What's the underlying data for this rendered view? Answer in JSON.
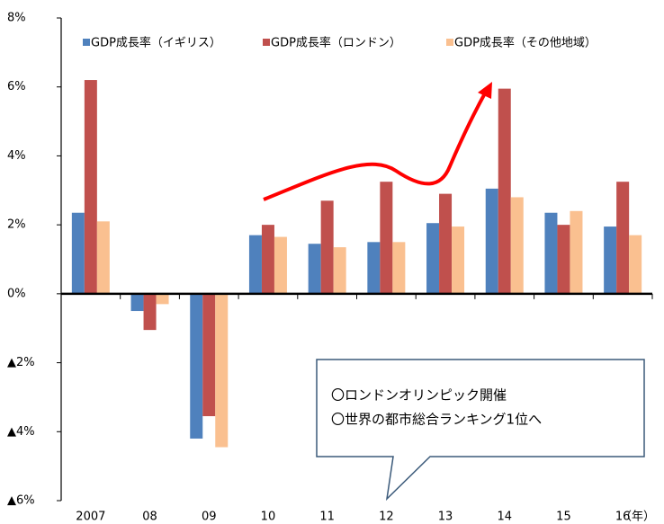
{
  "chart_data": {
    "type": "bar",
    "categories": [
      "2007",
      "08",
      "09",
      "10",
      "11",
      "12",
      "13",
      "14",
      "15",
      "16"
    ],
    "x_label": "（年）",
    "series": [
      {
        "name": "GDP成長率（イギリス）",
        "color": "#4f81bd",
        "values": [
          2.35,
          -0.5,
          -4.2,
          1.7,
          1.45,
          1.5,
          2.05,
          3.05,
          2.35,
          1.95
        ]
      },
      {
        "name": "GDP成長率（ロンドン）",
        "color": "#c0504d",
        "values": [
          6.2,
          -1.05,
          -3.55,
          2.0,
          2.7,
          3.25,
          2.9,
          5.95,
          2.0,
          3.25
        ]
      },
      {
        "name": "GDP成長率（その他地域）",
        "color": "#fac090",
        "values": [
          2.1,
          -0.3,
          -4.45,
          1.65,
          1.35,
          1.5,
          1.95,
          2.8,
          2.4,
          1.7
        ]
      }
    ],
    "ylim": [
      -6,
      8
    ],
    "yticks": [
      {
        "value": -6,
        "label": "▲6%"
      },
      {
        "value": -4,
        "label": "▲4%"
      },
      {
        "value": -2,
        "label": "▲2%"
      },
      {
        "value": 0,
        "label": "0%"
      },
      {
        "value": 2,
        "label": "2%"
      },
      {
        "value": 4,
        "label": "4%"
      },
      {
        "value": 6,
        "label": "6%"
      },
      {
        "value": 8,
        "label": "8%"
      }
    ],
    "grid": false,
    "legend": "top",
    "annotations": [
      "〇ロンドンオリンピック開催",
      "〇世界の都市総合ランキング1位へ"
    ]
  }
}
